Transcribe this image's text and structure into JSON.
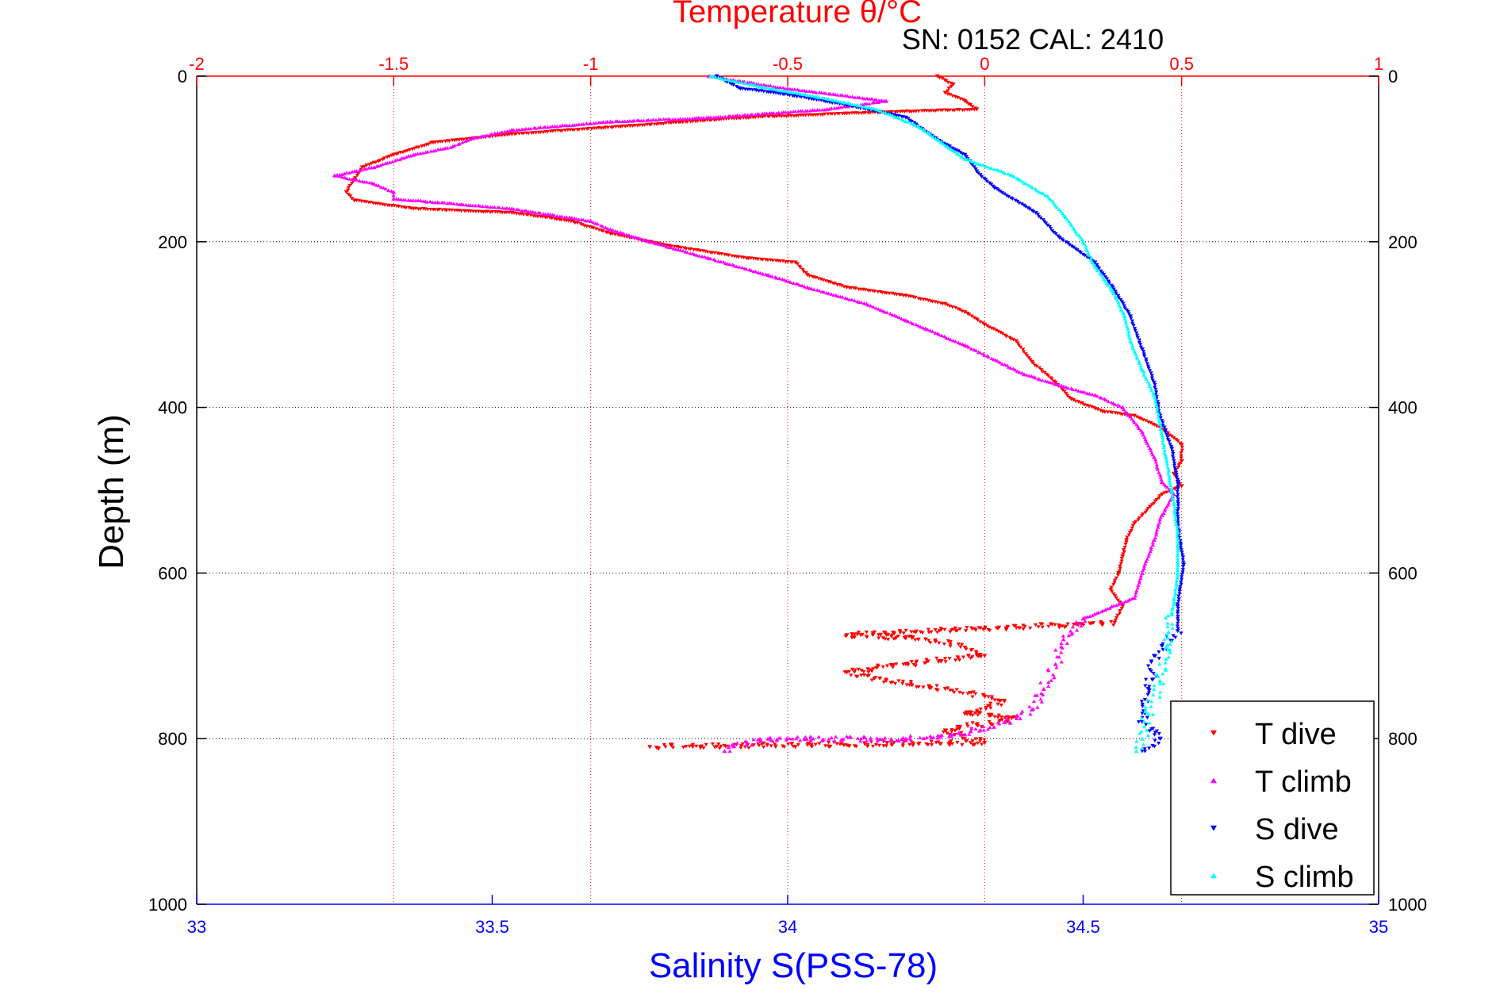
{
  "chart_data": {
    "type": "scatter",
    "title": "Temperature θ/°C",
    "subtitle": "SN: 0152  CAL: 2410",
    "ylabel": "Depth (m)",
    "xlabel": "Salinity S(PSS-78)",
    "top_xlabel": "Temperature θ/°C",
    "ylim": [
      0,
      1000
    ],
    "y_reversed": true,
    "yticks": [
      "0",
      "200",
      "400",
      "600",
      "800",
      "1000"
    ],
    "ytick_values": [
      0,
      200,
      400,
      600,
      800,
      1000
    ],
    "temperature_axis": {
      "xlim": [
        -2,
        1
      ],
      "ticks": [
        "-2",
        "-1.5",
        "-1",
        "-0.5",
        "0",
        "0.5",
        "1"
      ],
      "tick_values": [
        -2,
        -1.5,
        -1,
        -0.5,
        0,
        0.5,
        1
      ],
      "color": "#ff0000"
    },
    "salinity_axis": {
      "xlim": [
        33,
        35
      ],
      "ticks": [
        "33",
        "33.5",
        "34",
        "34.5",
        "35"
      ],
      "tick_values": [
        33,
        33.5,
        34,
        34.5,
        35
      ],
      "color": "#0000ff"
    },
    "grid": true,
    "legend_position": "bottom-right",
    "series": [
      {
        "name": "T dive",
        "axis": "temperature",
        "color": "#ff0000",
        "marker": "triangle-down",
        "points": [
          [
            -0.12,
            0
          ],
          [
            -0.08,
            10
          ],
          [
            -0.1,
            20
          ],
          [
            -0.05,
            30
          ],
          [
            -0.02,
            40
          ],
          [
            -0.35,
            45
          ],
          [
            -0.6,
            50
          ],
          [
            -0.9,
            60
          ],
          [
            -1.2,
            70
          ],
          [
            -1.4,
            80
          ],
          [
            -1.5,
            95
          ],
          [
            -1.58,
            110
          ],
          [
            -1.6,
            125
          ],
          [
            -1.62,
            140
          ],
          [
            -1.6,
            150
          ],
          [
            -1.45,
            160
          ],
          [
            -1.2,
            165
          ],
          [
            -1.05,
            175
          ],
          [
            -0.95,
            190
          ],
          [
            -0.8,
            205
          ],
          [
            -0.6,
            220
          ],
          [
            -0.48,
            225
          ],
          [
            -0.45,
            240
          ],
          [
            -0.35,
            255
          ],
          [
            -0.2,
            265
          ],
          [
            -0.1,
            275
          ],
          [
            -0.05,
            285
          ],
          [
            0,
            300
          ],
          [
            0.08,
            320
          ],
          [
            0.12,
            345
          ],
          [
            0.18,
            370
          ],
          [
            0.22,
            390
          ],
          [
            0.3,
            405
          ],
          [
            0.38,
            410
          ],
          [
            0.45,
            425
          ],
          [
            0.5,
            445
          ],
          [
            0.5,
            465
          ],
          [
            0.48,
            480
          ],
          [
            0.5,
            495
          ],
          [
            0.45,
            505
          ],
          [
            0.42,
            520
          ],
          [
            0.38,
            540
          ],
          [
            0.36,
            560
          ],
          [
            0.35,
            580
          ],
          [
            0.34,
            600
          ],
          [
            0.32,
            620
          ],
          [
            0.35,
            640
          ],
          [
            0.33,
            660
          ],
          [
            -0.35,
            675
          ],
          [
            -0.15,
            680
          ],
          [
            -0.05,
            690
          ],
          [
            0,
            700
          ],
          [
            -0.2,
            710
          ],
          [
            -0.35,
            720
          ],
          [
            -0.25,
            730
          ],
          [
            -0.1,
            740
          ],
          [
            0.05,
            755
          ],
          [
            -0.05,
            770
          ],
          [
            0.08,
            775
          ],
          [
            -0.1,
            790
          ],
          [
            0,
            805
          ],
          [
            -0.85,
            810
          ]
        ]
      },
      {
        "name": "T climb",
        "axis": "temperature",
        "color": "#ff00ff",
        "marker": "triangle-up",
        "points": [
          [
            -0.7,
            0
          ],
          [
            -0.5,
            15
          ],
          [
            -0.25,
            30
          ],
          [
            -0.4,
            40
          ],
          [
            -0.7,
            50
          ],
          [
            -0.95,
            55
          ],
          [
            -1.2,
            65
          ],
          [
            -1.3,
            75
          ],
          [
            -1.35,
            85
          ],
          [
            -1.45,
            95
          ],
          [
            -1.55,
            110
          ],
          [
            -1.65,
            120
          ],
          [
            -1.55,
            130
          ],
          [
            -1.5,
            140
          ],
          [
            -1.5,
            148
          ],
          [
            -1.2,
            160
          ],
          [
            -1.0,
            175
          ],
          [
            -0.95,
            185
          ],
          [
            -0.85,
            200
          ],
          [
            -0.7,
            220
          ],
          [
            -0.55,
            240
          ],
          [
            -0.45,
            255
          ],
          [
            -0.3,
            275
          ],
          [
            -0.2,
            295
          ],
          [
            -0.15,
            305
          ],
          [
            -0.05,
            325
          ],
          [
            0.1,
            360
          ],
          [
            0.2,
            375
          ],
          [
            0.28,
            385
          ],
          [
            0.35,
            400
          ],
          [
            0.4,
            430
          ],
          [
            0.43,
            460
          ],
          [
            0.45,
            490
          ],
          [
            0.48,
            505
          ],
          [
            0.45,
            530
          ],
          [
            0.43,
            560
          ],
          [
            0.4,
            600
          ],
          [
            0.38,
            630
          ],
          [
            0.25,
            655
          ],
          [
            0.2,
            680
          ],
          [
            0.18,
            710
          ],
          [
            0.15,
            740
          ],
          [
            0.12,
            765
          ],
          [
            0.05,
            780
          ],
          [
            -0.05,
            795
          ],
          [
            -0.2,
            800
          ],
          [
            -0.55,
            800
          ],
          [
            -0.65,
            810
          ],
          [
            -0.66,
            815
          ]
        ]
      },
      {
        "name": "S dive",
        "axis": "salinity",
        "color": "#0000ff",
        "marker": "triangle-down",
        "points": [
          [
            33.88,
            0
          ],
          [
            33.92,
            15
          ],
          [
            33.98,
            20
          ],
          [
            34.1,
            35
          ],
          [
            34.2,
            50
          ],
          [
            34.25,
            75
          ],
          [
            34.3,
            95
          ],
          [
            34.32,
            115
          ],
          [
            34.35,
            135
          ],
          [
            34.42,
            165
          ],
          [
            34.46,
            195
          ],
          [
            34.52,
            225
          ],
          [
            34.55,
            255
          ],
          [
            34.58,
            290
          ],
          [
            34.6,
            330
          ],
          [
            34.62,
            370
          ],
          [
            34.63,
            410
          ],
          [
            34.65,
            450
          ],
          [
            34.66,
            490
          ],
          [
            34.66,
            540
          ],
          [
            34.67,
            590
          ],
          [
            34.66,
            640
          ],
          [
            34.66,
            670
          ],
          [
            34.62,
            700
          ],
          [
            34.61,
            740
          ],
          [
            34.6,
            780
          ],
          [
            34.63,
            800
          ],
          [
            34.6,
            815
          ]
        ]
      },
      {
        "name": "S climb",
        "axis": "salinity",
        "color": "#00ffff",
        "marker": "triangle-up",
        "points": [
          [
            33.87,
            0
          ],
          [
            33.95,
            12
          ],
          [
            34.05,
            25
          ],
          [
            34.15,
            40
          ],
          [
            34.22,
            60
          ],
          [
            34.26,
            80
          ],
          [
            34.3,
            100
          ],
          [
            34.38,
            120
          ],
          [
            34.44,
            145
          ],
          [
            34.47,
            170
          ],
          [
            34.5,
            200
          ],
          [
            34.52,
            230
          ],
          [
            34.55,
            260
          ],
          [
            34.57,
            290
          ],
          [
            34.58,
            320
          ],
          [
            34.6,
            355
          ],
          [
            34.62,
            385
          ],
          [
            34.63,
            420
          ],
          [
            34.64,
            460
          ],
          [
            34.65,
            500
          ],
          [
            34.66,
            550
          ],
          [
            34.66,
            600
          ],
          [
            34.65,
            650
          ],
          [
            34.64,
            690
          ],
          [
            34.63,
            730
          ],
          [
            34.61,
            770
          ],
          [
            34.6,
            800
          ],
          [
            34.59,
            815
          ]
        ]
      }
    ]
  },
  "legend": {
    "items": [
      {
        "label": "T dive",
        "color": "#ff0000",
        "marker": "triangle-down"
      },
      {
        "label": "T climb",
        "color": "#ff00ff",
        "marker": "triangle-up"
      },
      {
        "label": "S dive",
        "color": "#0000ff",
        "marker": "triangle-down"
      },
      {
        "label": "S climb",
        "color": "#00ffff",
        "marker": "triangle-up"
      }
    ]
  }
}
